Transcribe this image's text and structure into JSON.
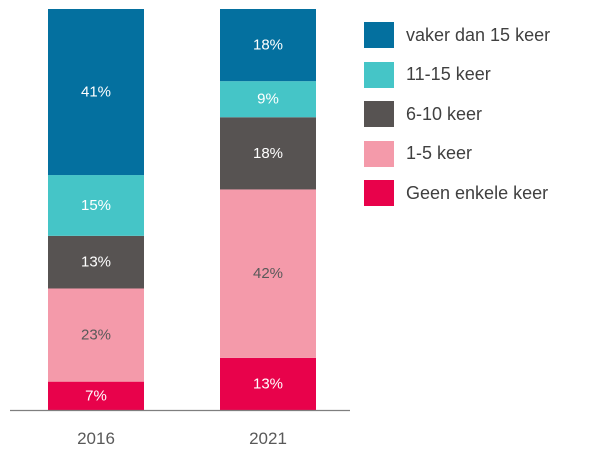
{
  "chart_data": {
    "type": "bar",
    "stacked": true,
    "categories": [
      "2016",
      "2021"
    ],
    "series": [
      {
        "name": "Geen enkele keer",
        "color": "#E8024B",
        "label_color": "#ffffff",
        "values": [
          7,
          13
        ],
        "labels": [
          "7%",
          "13%"
        ]
      },
      {
        "name": "1-5 keer",
        "color": "#F49AAA",
        "label_color": "#595959",
        "values": [
          23,
          42
        ],
        "labels": [
          "23%",
          "42%"
        ]
      },
      {
        "name": "6-10 keer",
        "color": "#575352",
        "label_color": "#ffffff",
        "values": [
          13,
          18
        ],
        "labels": [
          "13%",
          "18%"
        ]
      },
      {
        "name": "11-15 keer",
        "color": "#45C5C7",
        "label_color": "#ffffff",
        "values": [
          15,
          9
        ],
        "labels": [
          "15%",
          "9%"
        ]
      },
      {
        "name": "vaker dan 15 keer",
        "color": "#04709F",
        "label_color": "#ffffff",
        "values": [
          41,
          18
        ],
        "labels": [
          "41%",
          "18%"
        ]
      }
    ],
    "legend": {
      "position": "right",
      "order": [
        "vaker dan 15 keer",
        "11-15 keer",
        "6-10 keer",
        "1-5 keer",
        "Geen enkele keer"
      ]
    },
    "axis_color": "#7F7F7F",
    "title": "",
    "xlabel": "",
    "ylabel": ""
  }
}
